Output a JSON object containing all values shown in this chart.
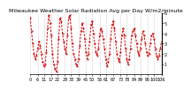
{
  "title": "Milwaukee Weather Solar Radiation Avg per Day W/m2/minute",
  "y_values": [
    5.5,
    4.2,
    3.0,
    2.0,
    1.5,
    1.8,
    2.5,
    3.2,
    2.8,
    2.0,
    1.2,
    0.8,
    1.0,
    2.2,
    4.5,
    5.8,
    5.0,
    3.8,
    2.0,
    1.0,
    0.5,
    0.3,
    1.2,
    3.5,
    5.5,
    5.2,
    4.0,
    3.2,
    2.5,
    2.0,
    3.8,
    5.5,
    5.8,
    4.5,
    3.0,
    2.0,
    1.5,
    1.0,
    0.8,
    1.5,
    2.8,
    4.2,
    5.0,
    4.5,
    3.5,
    2.2,
    1.5,
    2.0,
    3.2,
    4.8,
    5.2,
    4.0,
    3.0,
    2.2,
    1.8,
    2.5,
    3.8,
    4.5,
    4.2,
    3.5,
    2.5,
    1.5,
    0.8,
    1.2,
    2.0,
    3.5,
    4.8,
    5.2,
    4.5,
    3.2,
    2.0,
    1.5,
    1.2,
    2.2,
    3.8,
    4.5,
    3.8,
    2.5,
    1.5,
    1.0,
    1.5,
    2.5,
    3.8,
    4.2,
    4.5,
    3.8,
    3.0,
    2.2,
    1.8,
    2.5,
    3.5,
    4.2,
    3.8,
    3.0,
    2.2,
    1.8,
    2.0,
    3.0,
    3.8,
    4.0,
    3.5,
    2.5,
    1.8,
    1.5,
    1.8,
    2.5,
    3.2
  ],
  "ylim": [
    0,
    6
  ],
  "yticks": [
    1,
    2,
    3,
    4,
    5,
    6
  ],
  "ytick_labels": [
    "1",
    "2",
    "3",
    "4",
    "5",
    "6"
  ],
  "line_color": "#cc0000",
  "background_color": "#ffffff",
  "grid_color": "#999999",
  "title_fontsize": 4.5,
  "tick_fontsize": 3.5
}
